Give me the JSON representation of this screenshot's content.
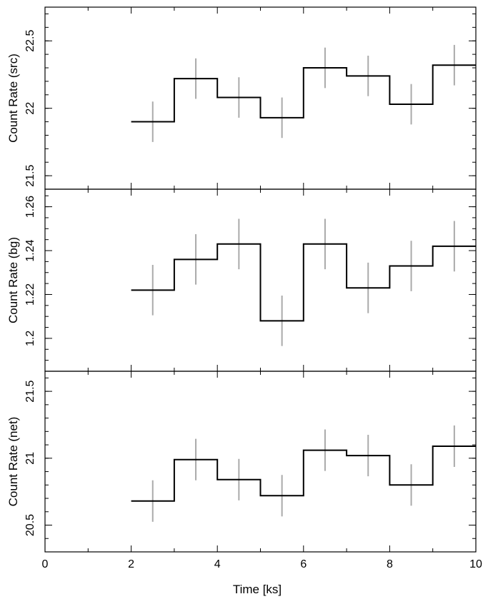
{
  "colors": {
    "step": "#000000",
    "errorbar": "#aaaaaa",
    "frame": "#000000"
  },
  "xlabel": "Time [ks]",
  "xlim": [
    0,
    10
  ],
  "xticks_major": [
    0,
    2,
    4,
    6,
    8,
    10
  ],
  "xtick_labels": [
    "0",
    "2",
    "4",
    "6",
    "8",
    "10"
  ],
  "chart_data": [
    {
      "type": "line",
      "style": "step",
      "ylabel": "Count Rate (src)",
      "ylim": [
        21.4,
        22.75
      ],
      "yticks_major": [
        21.5,
        22,
        22.5
      ],
      "ytick_labels": [
        "21.5",
        "22",
        "22.5"
      ],
      "ytick_minor_step": 0.1,
      "bins": [
        [
          2,
          3
        ],
        [
          3,
          4
        ],
        [
          4,
          5
        ],
        [
          5,
          6
        ],
        [
          6,
          7
        ],
        [
          7,
          8
        ],
        [
          8,
          9
        ],
        [
          9,
          10
        ]
      ],
      "x": [
        2.5,
        3.5,
        4.5,
        5.5,
        6.5,
        7.5,
        8.5,
        9.5
      ],
      "y": [
        21.9,
        22.22,
        22.08,
        21.93,
        22.3,
        22.24,
        22.03,
        22.32
      ],
      "yerr": [
        0.15,
        0.15,
        0.15,
        0.15,
        0.15,
        0.15,
        0.15,
        0.15
      ]
    },
    {
      "type": "line",
      "style": "step",
      "ylabel": "Count Rate (bg)",
      "ylim": [
        1.185,
        1.268
      ],
      "yticks_major": [
        1.2,
        1.22,
        1.24,
        1.26
      ],
      "ytick_labels": [
        "1.2",
        "1.22",
        "1.24",
        "1.26"
      ],
      "ytick_minor_step": 0.005,
      "bins": [
        [
          2,
          3
        ],
        [
          3,
          4
        ],
        [
          4,
          5
        ],
        [
          5,
          6
        ],
        [
          6,
          7
        ],
        [
          7,
          8
        ],
        [
          8,
          9
        ],
        [
          9,
          10
        ]
      ],
      "x": [
        2.5,
        3.5,
        4.5,
        5.5,
        6.5,
        7.5,
        8.5,
        9.5
      ],
      "y": [
        1.222,
        1.236,
        1.243,
        1.208,
        1.243,
        1.223,
        1.233,
        1.242
      ],
      "yerr": [
        0.0115,
        0.0115,
        0.0115,
        0.0115,
        0.0115,
        0.0115,
        0.0115,
        0.0115
      ]
    },
    {
      "type": "line",
      "style": "step",
      "ylabel": "Count Rate (net)",
      "ylim": [
        20.3,
        21.65
      ],
      "yticks_major": [
        20.5,
        21,
        21.5
      ],
      "ytick_labels": [
        "20.5",
        "21",
        "21.5"
      ],
      "ytick_minor_step": 0.1,
      "bins": [
        [
          2,
          3
        ],
        [
          3,
          4
        ],
        [
          4,
          5
        ],
        [
          5,
          6
        ],
        [
          6,
          7
        ],
        [
          7,
          8
        ],
        [
          8,
          9
        ],
        [
          9,
          10
        ]
      ],
      "x": [
        2.5,
        3.5,
        4.5,
        5.5,
        6.5,
        7.5,
        8.5,
        9.5
      ],
      "y": [
        20.68,
        20.99,
        20.84,
        20.72,
        21.06,
        21.02,
        20.8,
        21.09
      ],
      "yerr": [
        0.155,
        0.155,
        0.155,
        0.155,
        0.155,
        0.155,
        0.155,
        0.155
      ]
    }
  ]
}
